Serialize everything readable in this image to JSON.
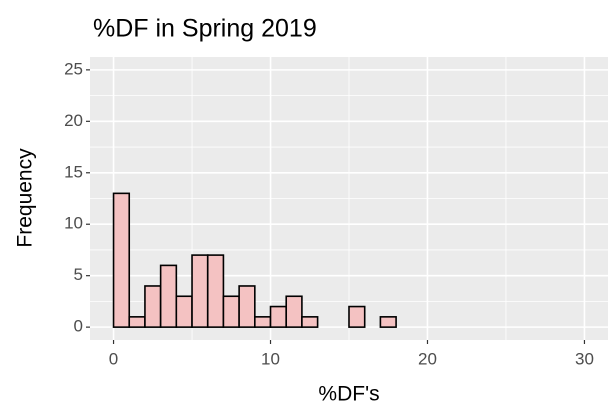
{
  "chart_data": {
    "type": "histogram",
    "title": "%DF in Spring 2019",
    "x_label": "%DF's",
    "y_label": "Frequency",
    "bins": [
      0,
      1,
      2,
      3,
      4,
      5,
      6,
      7,
      8,
      9,
      10,
      11,
      12,
      13,
      14,
      15,
      16,
      17,
      18,
      19,
      20,
      21,
      22,
      23,
      24,
      25,
      26,
      27,
      28,
      29,
      30
    ],
    "counts": [
      13,
      1,
      4,
      6,
      3,
      7,
      7,
      3,
      4,
      1,
      2,
      3,
      1,
      0,
      0,
      2,
      0,
      1,
      0,
      0,
      0,
      0,
      0,
      0,
      0,
      0,
      0,
      0,
      0,
      0
    ],
    "color": "#f4c2c2",
    "edge_color": "#000000",
    "xlim": [
      -1.5,
      31.5
    ],
    "xticks": [
      0,
      10,
      20,
      30
    ],
    "ylim": [
      -1.25,
      26.25
    ],
    "yticks": [
      0,
      5,
      10,
      15,
      20,
      25
    ],
    "grid": true
  }
}
